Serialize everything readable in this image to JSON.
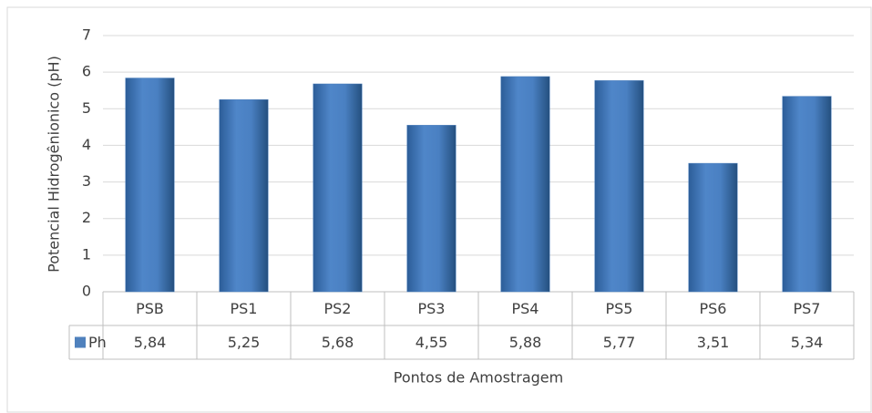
{
  "chart_data": {
    "type": "bar",
    "y_label": "Potencial Hidrogênionico (pH)",
    "x_label": "Pontos de Amostragem",
    "categories": [
      "PSB",
      "PS1",
      "PS2",
      "PS3",
      "PS4",
      "PS5",
      "PS6",
      "PS7"
    ],
    "series": [
      {
        "name": "Ph",
        "color": "#4f81bd",
        "values": [
          5.84,
          5.25,
          5.68,
          4.55,
          5.88,
          5.77,
          3.51,
          5.34
        ],
        "value_labels": [
          "5,84",
          "5,25",
          "5,68",
          "4,55",
          "5,88",
          "5,77",
          "3,51",
          "5,34"
        ]
      }
    ],
    "ylim": [
      0,
      7
    ],
    "yticks": [
      0,
      1,
      2,
      3,
      4,
      5,
      6,
      7
    ],
    "grid": true
  }
}
